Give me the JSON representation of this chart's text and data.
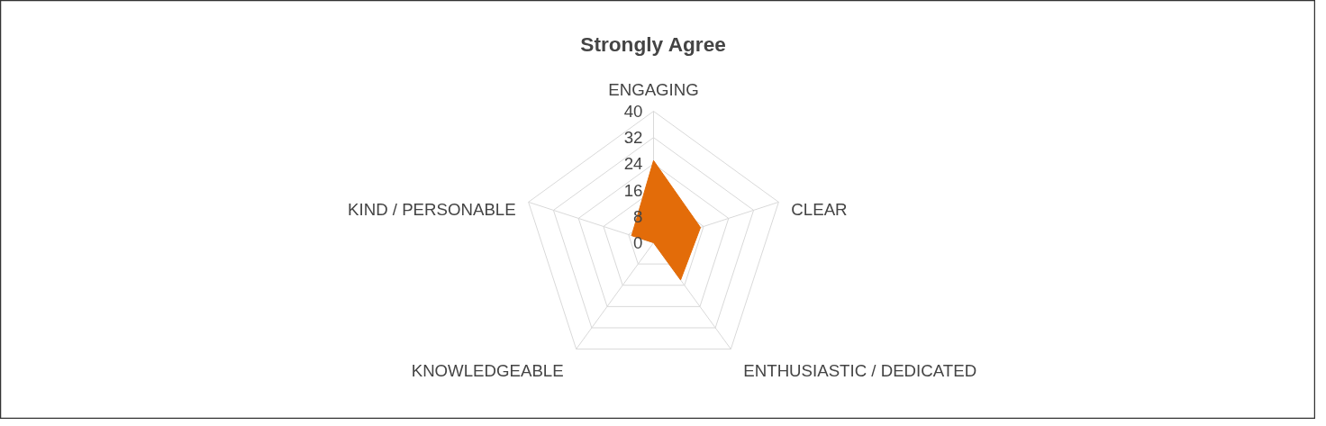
{
  "chart_data": {
    "type": "radar",
    "title": "Strongly Agree",
    "categories": [
      "ENGAGING",
      "CLEAR",
      "ENTHUSIASTIC / DEDICATED",
      "KNOWLEDGEABLE",
      "KIND / PERSONABLE"
    ],
    "series": [
      {
        "type": "area",
        "color": "#e36c09",
        "values": [
          25,
          15,
          14,
          0,
          7
        ]
      }
    ],
    "ylim": [
      0,
      40
    ],
    "yticks": [
      0,
      8,
      16,
      24,
      32,
      40
    ],
    "grid": true
  }
}
